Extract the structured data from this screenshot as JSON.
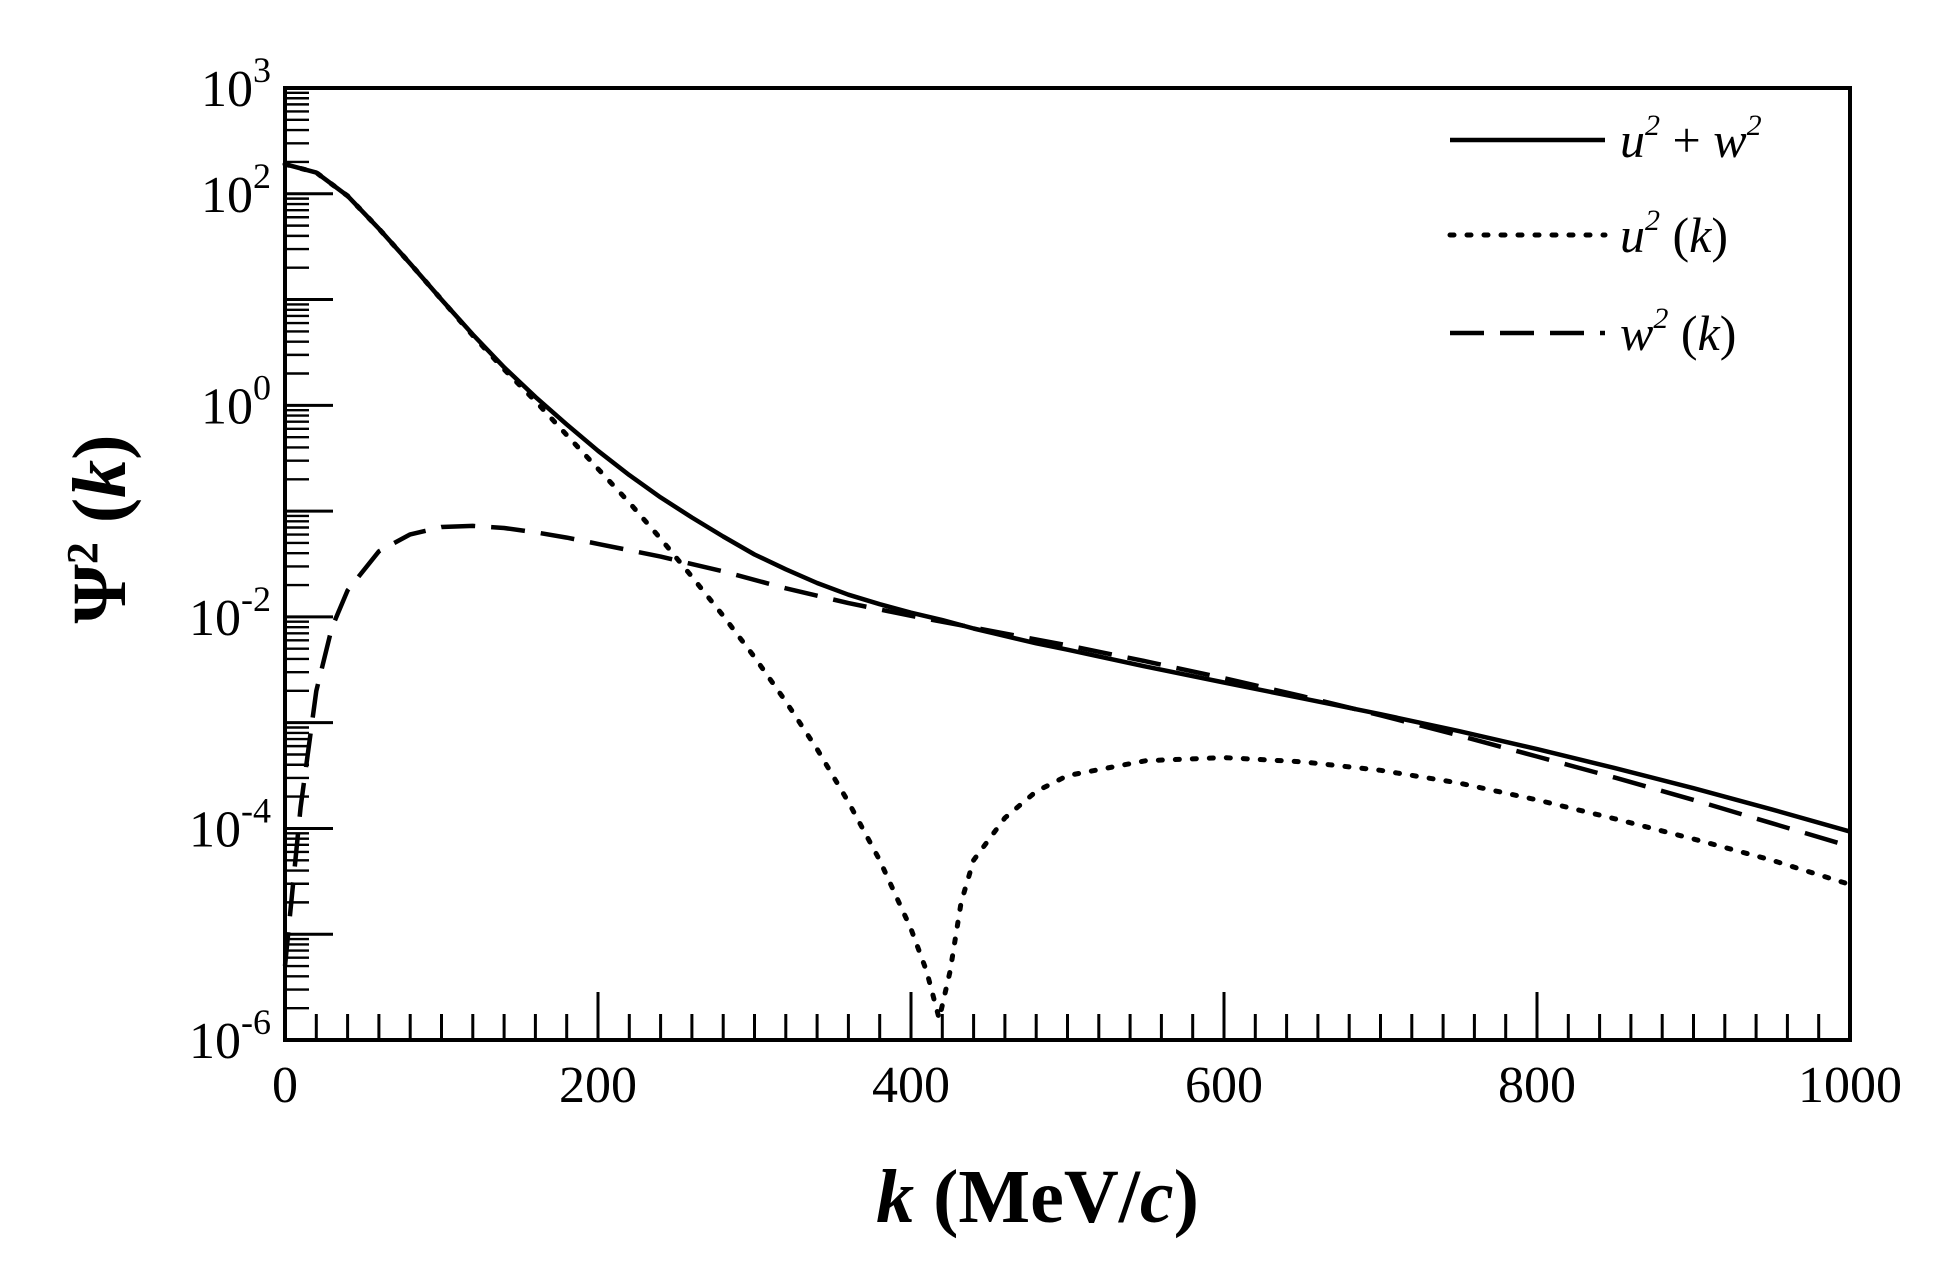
{
  "chart_data": {
    "type": "line",
    "title": "",
    "xlabel": "k (MeV/c)",
    "xlabel_parts": {
      "var": "k",
      "unit_open": " (MeV/",
      "unit_var": "c",
      "unit_close": ")"
    },
    "ylabel": "Ψ² (k)",
    "ylabel_parts": {
      "psi": "Ψ",
      "sup": "2",
      "open": " (",
      "var": "k",
      "close": ")"
    },
    "xlim": [
      0,
      1000
    ],
    "ylim_log10": [
      -6,
      3
    ],
    "yscale": "log",
    "grid": false,
    "legend_position": "top-right",
    "x_ticks": [
      "0",
      "200",
      "400",
      "600",
      "800",
      "1000"
    ],
    "x_tick_values": [
      0,
      200,
      400,
      600,
      800,
      1000
    ],
    "y_ticks": [
      {
        "exp": -6,
        "base": "10",
        "sup": "-6"
      },
      {
        "exp": -4,
        "base": "10",
        "sup": "-4"
      },
      {
        "exp": -2,
        "base": "10",
        "sup": "-2"
      },
      {
        "exp": 0,
        "base": "10",
        "sup": "0"
      },
      {
        "exp": 2,
        "base": "10",
        "sup": "2"
      },
      {
        "exp": 3,
        "base": "10",
        "sup": "3"
      }
    ],
    "x": [
      0,
      20,
      40,
      60,
      80,
      100,
      120,
      140,
      160,
      180,
      200,
      220,
      240,
      260,
      280,
      300,
      320,
      340,
      360,
      380,
      400,
      420,
      440,
      460,
      480,
      500,
      550,
      600,
      650,
      700,
      750,
      800,
      850,
      900,
      950,
      1000
    ],
    "series": [
      {
        "name": "u² + w²",
        "legend": {
          "a": "u",
          "a_sup": "2",
          "op": " + ",
          "b": "w",
          "b_sup": "2"
        },
        "style": "solid",
        "y_log10": [
          2.28,
          2.2,
          1.98,
          1.67,
          1.34,
          1.0,
          0.67,
          0.36,
          0.08,
          -0.18,
          -0.43,
          -0.66,
          -0.87,
          -1.06,
          -1.24,
          -1.41,
          -1.55,
          -1.68,
          -1.79,
          -1.88,
          -1.96,
          -2.03,
          -2.11,
          -2.18,
          -2.25,
          -2.31,
          -2.47,
          -2.62,
          -2.77,
          -2.92,
          -3.08,
          -3.25,
          -3.43,
          -3.62,
          -3.82,
          -4.03
        ]
      },
      {
        "name": "u² (k)",
        "legend": {
          "a": "u",
          "a_sup": "2",
          "arg_open": " (",
          "arg": "k",
          "arg_close": ")"
        },
        "style": "dotted",
        "x": [
          0,
          20,
          40,
          60,
          80,
          100,
          120,
          140,
          160,
          180,
          200,
          220,
          240,
          260,
          280,
          300,
          320,
          340,
          360,
          380,
          400,
          410,
          418,
          425,
          432,
          440,
          460,
          480,
          500,
          550,
          600,
          650,
          700,
          750,
          800,
          850,
          900,
          950,
          1000
        ],
        "y_log10": [
          2.28,
          2.2,
          1.98,
          1.67,
          1.34,
          1.0,
          0.66,
          0.34,
          0.04,
          -0.28,
          -0.6,
          -0.92,
          -1.26,
          -1.62,
          -1.99,
          -2.38,
          -2.8,
          -3.25,
          -3.75,
          -4.3,
          -4.95,
          -5.35,
          -5.8,
          -5.35,
          -4.7,
          -4.3,
          -3.9,
          -3.65,
          -3.5,
          -3.36,
          -3.33,
          -3.37,
          -3.45,
          -3.57,
          -3.73,
          -3.91,
          -4.1,
          -4.3,
          -4.53
        ]
      },
      {
        "name": "w² (k)",
        "legend": {
          "a": "w",
          "a_sup": "2",
          "arg_open": " (",
          "arg": "k",
          "arg_close": ")"
        },
        "style": "dashed",
        "x": [
          0,
          10,
          20,
          30,
          40,
          60,
          80,
          100,
          120,
          140,
          160,
          180,
          200,
          240,
          280,
          320,
          360,
          400,
          450,
          500,
          550,
          600,
          650,
          700,
          750,
          800,
          850,
          900,
          950,
          1000
        ],
        "y_log10": [
          -5.3,
          -3.8,
          -2.7,
          -2.1,
          -1.75,
          -1.38,
          -1.22,
          -1.15,
          -1.14,
          -1.16,
          -1.2,
          -1.25,
          -1.31,
          -1.43,
          -1.57,
          -1.73,
          -1.87,
          -1.99,
          -2.13,
          -2.27,
          -2.42,
          -2.58,
          -2.75,
          -2.93,
          -3.12,
          -3.32,
          -3.52,
          -3.73,
          -3.95,
          -4.17
        ]
      }
    ]
  }
}
